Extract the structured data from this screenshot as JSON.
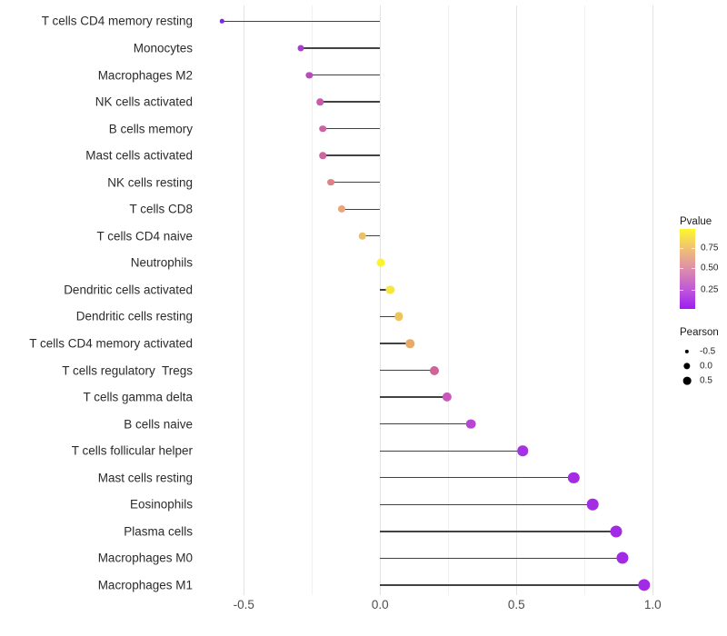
{
  "chart_data": {
    "type": "lollipop",
    "orientation": "horizontal",
    "title": "",
    "xlabel": "",
    "ylabel": "",
    "x_ticks": [
      "-0.5",
      "0.0",
      "0.5",
      "1.0"
    ],
    "x_tick_values": [
      -0.5,
      0.0,
      0.5,
      1.0
    ],
    "xlim": [
      -0.66,
      1.05
    ],
    "grid": {
      "major_x": [
        -0.5,
        0.0,
        0.5,
        1.0
      ],
      "minor_x": [
        -0.25,
        0.25,
        0.75
      ],
      "horizontal": false
    },
    "points": [
      {
        "label": "T cells CD4 memory resting",
        "pearson": -0.58,
        "color": "#7b2bdb"
      },
      {
        "label": "Monocytes",
        "pearson": -0.29,
        "color": "#a93fc9"
      },
      {
        "label": "Macrophages M2",
        "pearson": -0.26,
        "color": "#ba4bbe"
      },
      {
        "label": "NK cells activated",
        "pearson": -0.22,
        "color": "#c75aae"
      },
      {
        "label": "B cells memory",
        "pearson": -0.21,
        "color": "#cd63a2"
      },
      {
        "label": "Mast cells activated",
        "pearson": -0.21,
        "color": "#cd65a0"
      },
      {
        "label": "NK cells resting",
        "pearson": -0.18,
        "color": "#db8289"
      },
      {
        "label": "T cells CD8",
        "pearson": -0.14,
        "color": "#eba47b"
      },
      {
        "label": "T cells CD4 naive",
        "pearson": -0.065,
        "color": "#e9c166"
      },
      {
        "label": "Neutrophils",
        "pearson": 0.002,
        "color": "#fdf32d"
      },
      {
        "label": "Dendritic cells activated",
        "pearson": 0.037,
        "color": "#f7e73a"
      },
      {
        "label": "Dendritic cells resting",
        "pearson": 0.068,
        "color": "#eec55d"
      },
      {
        "label": "T cells CD4 memory activated",
        "pearson": 0.11,
        "color": "#eaaa67"
      },
      {
        "label": "T cells regulatory  Tregs",
        "pearson": 0.2,
        "color": "#cf6496"
      },
      {
        "label": "T cells gamma delta",
        "pearson": 0.246,
        "color": "#ca58bb"
      },
      {
        "label": "B cells naive",
        "pearson": 0.332,
        "color": "#b747d3"
      },
      {
        "label": "T cells follicular helper",
        "pearson": 0.523,
        "color": "#a434e3"
      },
      {
        "label": "Mast cells resting",
        "pearson": 0.71,
        "color": "#a42ce2"
      },
      {
        "label": "Eosinophils",
        "pearson": 0.78,
        "color": "#a42ce2"
      },
      {
        "label": "Plasma cells",
        "pearson": 0.867,
        "color": "#a32ae4"
      },
      {
        "label": "Macrophages M0",
        "pearson": 0.889,
        "color": "#a32ae4"
      },
      {
        "label": "Macrophages M1",
        "pearson": 0.968,
        "color": "#a32ae6"
      }
    ],
    "stem_color": "#424242",
    "legend": {
      "pvalue": {
        "title": "Pvalue",
        "tick_labels": [
          "0.75",
          "0.50",
          "0.25"
        ],
        "tick_pos_pct": [
          23.3,
          49.4,
          75.6
        ],
        "gradient_colors": [
          "#fdf72c",
          "#f1c472",
          "#de8fa9",
          "#bf58d9",
          "#9e1df2"
        ],
        "gradient_pos_pct": [
          0,
          23,
          49,
          76,
          100
        ],
        "orientation": "vertical",
        "high_is_yellow": true
      },
      "pearson": {
        "title": "Pearson",
        "items": [
          {
            "label": "-0.5",
            "diameter": 4.3
          },
          {
            "label": "0.0",
            "diameter": 7.3
          },
          {
            "label": "0.5",
            "diameter": 8.7
          }
        ]
      }
    }
  }
}
